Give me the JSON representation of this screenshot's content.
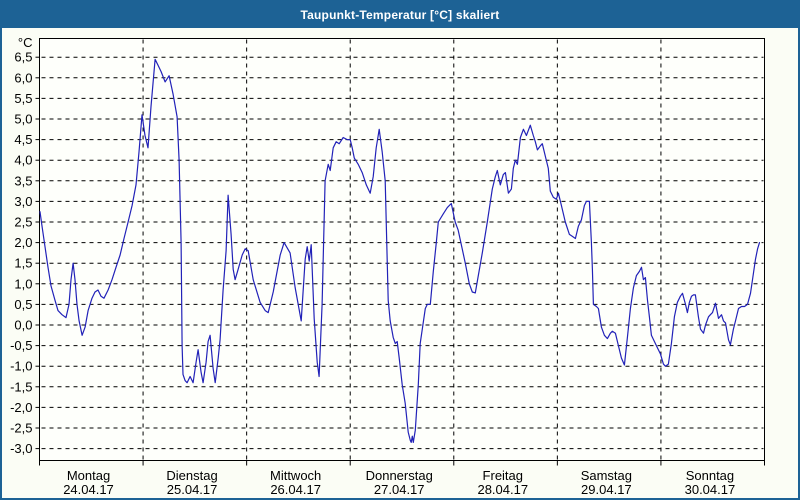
{
  "window": {
    "title": "Taupunkt-Temperatur [°C] skaliert"
  },
  "colors": {
    "titlebar_bg": "#1d6295",
    "titlebar_text": "#ffffff",
    "frame_border": "#1d6295",
    "page_bg": "#fbfdf5",
    "plot_bg": "#fefffb",
    "grid": "#000000",
    "axis_text": "#000000",
    "line": "#2222b8"
  },
  "chart_data": {
    "type": "line",
    "title": "Taupunkt-Temperatur [°C] skaliert",
    "ylabel": "°C",
    "ylim": [
      -3.3,
      7.0
    ],
    "grid": true,
    "legend": "none",
    "yticks": [
      {
        "value": 6.5,
        "label": "6,5"
      },
      {
        "value": 6.0,
        "label": "6,0"
      },
      {
        "value": 5.5,
        "label": "5,5"
      },
      {
        "value": 5.0,
        "label": "5,0"
      },
      {
        "value": 4.5,
        "label": "4,5"
      },
      {
        "value": 4.0,
        "label": "4,0"
      },
      {
        "value": 3.5,
        "label": "3,5"
      },
      {
        "value": 3.0,
        "label": "3,0"
      },
      {
        "value": 2.5,
        "label": "2,5"
      },
      {
        "value": 2.0,
        "label": "2,0"
      },
      {
        "value": 1.5,
        "label": "1,5"
      },
      {
        "value": 1.0,
        "label": "1,0"
      },
      {
        "value": 0.5,
        "label": "0,5"
      },
      {
        "value": 0.0,
        "label": "0,0"
      },
      {
        "value": -0.5,
        "label": "-0,5"
      },
      {
        "value": -1.0,
        "label": "-1,0"
      },
      {
        "value": -1.5,
        "label": "-1,5"
      },
      {
        "value": -2.0,
        "label": "-2,0"
      },
      {
        "value": -2.5,
        "label": "-2,5"
      },
      {
        "value": -3.0,
        "label": "-3,0"
      }
    ],
    "x_days": [
      {
        "name": "Montag",
        "date": "24.04.17"
      },
      {
        "name": "Dienstag",
        "date": "25.04.17"
      },
      {
        "name": "Mittwoch",
        "date": "26.04.17"
      },
      {
        "name": "Donnerstag",
        "date": "27.04.17"
      },
      {
        "name": "Freitag",
        "date": "28.04.17"
      },
      {
        "name": "Samstag",
        "date": "29.04.17"
      },
      {
        "name": "Sonntag",
        "date": "30.04.17"
      }
    ],
    "series": [
      {
        "name": "Taupunkt-Temperatur",
        "unit": "°C",
        "x_unit": "days_since_24_04_17",
        "points": [
          [
            0.005,
            2.75
          ],
          [
            0.024,
            2.4
          ],
          [
            0.053,
            1.9
          ],
          [
            0.082,
            1.4
          ],
          [
            0.111,
            0.95
          ],
          [
            0.15,
            0.6
          ],
          [
            0.179,
            0.35
          ],
          [
            0.217,
            0.25
          ],
          [
            0.256,
            0.18
          ],
          [
            0.285,
            0.5
          ],
          [
            0.304,
            1.1
          ],
          [
            0.324,
            1.5
          ],
          [
            0.343,
            1.1
          ],
          [
            0.362,
            0.5
          ],
          [
            0.382,
            0.1
          ],
          [
            0.411,
            -0.25
          ],
          [
            0.44,
            -0.05
          ],
          [
            0.469,
            0.35
          ],
          [
            0.507,
            0.65
          ],
          [
            0.536,
            0.8
          ],
          [
            0.565,
            0.85
          ],
          [
            0.594,
            0.7
          ],
          [
            0.623,
            0.65
          ],
          [
            0.662,
            0.85
          ],
          [
            0.7,
            1.1
          ],
          [
            0.739,
            1.4
          ],
          [
            0.778,
            1.7
          ],
          [
            0.816,
            2.1
          ],
          [
            0.855,
            2.5
          ],
          [
            0.894,
            2.9
          ],
          [
            0.932,
            3.4
          ],
          [
            0.961,
            4.2
          ],
          [
            0.99,
            5.1
          ],
          [
            1.019,
            4.6
          ],
          [
            1.048,
            4.3
          ],
          [
            1.077,
            5.3
          ],
          [
            1.116,
            6.45
          ],
          [
            1.145,
            6.3
          ],
          [
            1.174,
            6.15
          ],
          [
            1.213,
            5.9
          ],
          [
            1.251,
            6.05
          ],
          [
            1.29,
            5.6
          ],
          [
            1.329,
            5.05
          ],
          [
            1.348,
            4.0
          ],
          [
            1.367,
            2.0
          ],
          [
            1.377,
            -0.5
          ],
          [
            1.386,
            -1.2
          ],
          [
            1.406,
            -1.35
          ],
          [
            1.425,
            -1.4
          ],
          [
            1.454,
            -1.25
          ],
          [
            1.483,
            -1.4
          ],
          [
            1.512,
            -0.9
          ],
          [
            1.531,
            -0.6
          ],
          [
            1.56,
            -1.15
          ],
          [
            1.58,
            -1.4
          ],
          [
            1.609,
            -0.9
          ],
          [
            1.628,
            -0.4
          ],
          [
            1.647,
            -0.25
          ],
          [
            1.676,
            -1.05
          ],
          [
            1.696,
            -1.4
          ],
          [
            1.725,
            -0.8
          ],
          [
            1.744,
            -0.35
          ],
          [
            1.773,
            0.85
          ],
          [
            1.802,
            1.8
          ],
          [
            1.821,
            3.15
          ],
          [
            1.85,
            2.2
          ],
          [
            1.87,
            1.35
          ],
          [
            1.889,
            1.1
          ],
          [
            1.918,
            1.35
          ],
          [
            1.957,
            1.7
          ],
          [
            1.986,
            1.85
          ],
          [
            2.015,
            1.8
          ],
          [
            2.063,
            1.1
          ],
          [
            2.13,
            0.55
          ],
          [
            2.179,
            0.35
          ],
          [
            2.208,
            0.3
          ],
          [
            2.256,
            0.8
          ],
          [
            2.324,
            1.7
          ],
          [
            2.362,
            2.0
          ],
          [
            2.42,
            1.75
          ],
          [
            2.469,
            0.9
          ],
          [
            2.527,
            0.1
          ],
          [
            2.565,
            1.6
          ],
          [
            2.585,
            1.9
          ],
          [
            2.604,
            1.55
          ],
          [
            2.623,
            1.95
          ],
          [
            2.652,
            0.15
          ],
          [
            2.681,
            -0.9
          ],
          [
            2.7,
            -1.25
          ],
          [
            2.729,
            0.5
          ],
          [
            2.758,
            3.5
          ],
          [
            2.787,
            3.9
          ],
          [
            2.807,
            3.75
          ],
          [
            2.836,
            4.3
          ],
          [
            2.865,
            4.45
          ],
          [
            2.894,
            4.4
          ],
          [
            2.932,
            4.55
          ],
          [
            2.971,
            4.5
          ],
          [
            3.0,
            4.5
          ],
          [
            3.019,
            4.3
          ],
          [
            3.039,
            4.05
          ],
          [
            3.077,
            3.9
          ],
          [
            3.116,
            3.7
          ],
          [
            3.155,
            3.4
          ],
          [
            3.193,
            3.2
          ],
          [
            3.222,
            3.6
          ],
          [
            3.251,
            4.3
          ],
          [
            3.28,
            4.75
          ],
          [
            3.309,
            4.2
          ],
          [
            3.338,
            3.5
          ],
          [
            3.367,
            0.6
          ],
          [
            3.386,
            0.1
          ],
          [
            3.415,
            -0.3
          ],
          [
            3.435,
            -0.45
          ],
          [
            3.454,
            -0.4
          ],
          [
            3.473,
            -0.8
          ],
          [
            3.502,
            -1.45
          ],
          [
            3.531,
            -1.9
          ],
          [
            3.56,
            -2.6
          ],
          [
            3.58,
            -2.8
          ],
          [
            3.589,
            -2.85
          ],
          [
            3.599,
            -2.7
          ],
          [
            3.609,
            -2.85
          ],
          [
            3.628,
            -2.55
          ],
          [
            3.657,
            -1.45
          ],
          [
            3.676,
            -0.45
          ],
          [
            3.696,
            -0.1
          ],
          [
            3.725,
            0.4
          ],
          [
            3.744,
            0.5
          ],
          [
            3.773,
            0.5
          ],
          [
            3.802,
            1.3
          ],
          [
            3.831,
            2.0
          ],
          [
            3.85,
            2.5
          ],
          [
            3.899,
            2.7
          ],
          [
            3.937,
            2.85
          ],
          [
            3.976,
            2.95
          ],
          [
            4.014,
            2.5
          ],
          [
            4.043,
            2.3
          ],
          [
            4.111,
            1.5
          ],
          [
            4.15,
            1.0
          ],
          [
            4.179,
            0.8
          ],
          [
            4.208,
            0.78
          ],
          [
            4.237,
            1.2
          ],
          [
            4.275,
            1.75
          ],
          [
            4.324,
            2.5
          ],
          [
            4.372,
            3.3
          ],
          [
            4.401,
            3.6
          ],
          [
            4.42,
            3.75
          ],
          [
            4.449,
            3.4
          ],
          [
            4.478,
            3.65
          ],
          [
            4.498,
            3.7
          ],
          [
            4.527,
            3.2
          ],
          [
            4.556,
            3.3
          ],
          [
            4.575,
            3.8
          ],
          [
            4.594,
            4.0
          ],
          [
            4.614,
            3.9
          ],
          [
            4.643,
            4.55
          ],
          [
            4.672,
            4.75
          ],
          [
            4.701,
            4.6
          ],
          [
            4.739,
            4.85
          ],
          [
            4.768,
            4.6
          ],
          [
            4.787,
            4.45
          ],
          [
            4.807,
            4.25
          ],
          [
            4.836,
            4.35
          ],
          [
            4.855,
            4.4
          ],
          [
            4.884,
            4.1
          ],
          [
            4.913,
            3.8
          ],
          [
            4.932,
            3.25
          ],
          [
            4.961,
            3.1
          ],
          [
            4.99,
            3.05
          ],
          [
            5.01,
            3.2
          ],
          [
            5.039,
            2.9
          ],
          [
            5.077,
            2.5
          ],
          [
            5.116,
            2.2
          ],
          [
            5.145,
            2.15
          ],
          [
            5.174,
            2.1
          ],
          [
            5.203,
            2.4
          ],
          [
            5.232,
            2.55
          ],
          [
            5.261,
            2.9
          ],
          [
            5.28,
            3.0
          ],
          [
            5.309,
            3.0
          ],
          [
            5.329,
            2.0
          ],
          [
            5.338,
            1.35
          ],
          [
            5.348,
            0.5
          ],
          [
            5.377,
            0.45
          ],
          [
            5.396,
            0.4
          ],
          [
            5.425,
            -0.05
          ],
          [
            5.454,
            -0.25
          ],
          [
            5.483,
            -0.33
          ],
          [
            5.512,
            -0.2
          ],
          [
            5.531,
            -0.15
          ],
          [
            5.56,
            -0.2
          ],
          [
            5.589,
            -0.5
          ],
          [
            5.618,
            -0.8
          ],
          [
            5.647,
            -0.97
          ],
          [
            5.676,
            -0.3
          ],
          [
            5.705,
            0.4
          ],
          [
            5.734,
            0.9
          ],
          [
            5.763,
            1.2
          ],
          [
            5.792,
            1.3
          ],
          [
            5.812,
            1.4
          ],
          [
            5.831,
            1.1
          ],
          [
            5.85,
            1.15
          ],
          [
            5.87,
            0.6
          ],
          [
            5.889,
            0.2
          ],
          [
            5.908,
            -0.25
          ],
          [
            5.937,
            -0.4
          ],
          [
            5.966,
            -0.55
          ],
          [
            5.995,
            -0.7
          ],
          [
            6.024,
            -0.95
          ],
          [
            6.043,
            -1.0
          ],
          [
            6.072,
            -0.95
          ],
          [
            6.101,
            -0.45
          ],
          [
            6.13,
            0.2
          ],
          [
            6.159,
            0.55
          ],
          [
            6.188,
            0.7
          ],
          [
            6.208,
            0.77
          ],
          [
            6.237,
            0.5
          ],
          [
            6.256,
            0.3
          ],
          [
            6.275,
            0.55
          ],
          [
            6.295,
            0.7
          ],
          [
            6.314,
            0.73
          ],
          [
            6.333,
            0.73
          ],
          [
            6.362,
            0.2
          ],
          [
            6.382,
            -0.1
          ],
          [
            6.411,
            -0.2
          ],
          [
            6.43,
            0.0
          ],
          [
            6.459,
            0.2
          ],
          [
            6.478,
            0.25
          ],
          [
            6.498,
            0.3
          ],
          [
            6.527,
            0.53
          ],
          [
            6.556,
            0.16
          ],
          [
            6.585,
            0.25
          ],
          [
            6.604,
            0.1
          ],
          [
            6.623,
            0.05
          ],
          [
            6.652,
            -0.36
          ],
          [
            6.671,
            -0.48
          ],
          [
            6.7,
            -0.1
          ],
          [
            6.72,
            0.1
          ],
          [
            6.749,
            0.4
          ],
          [
            6.778,
            0.45
          ],
          [
            6.807,
            0.45
          ],
          [
            6.836,
            0.5
          ],
          [
            6.865,
            0.77
          ],
          [
            6.884,
            1.1
          ],
          [
            6.913,
            1.6
          ],
          [
            6.933,
            1.85
          ],
          [
            6.952,
            2.0
          ]
        ]
      }
    ]
  }
}
